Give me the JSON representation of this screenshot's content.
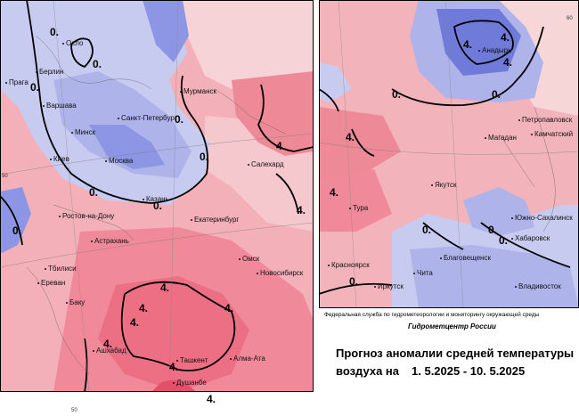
{
  "header": {
    "agency": "Федеральная служба по гидрометеорологии и мониторингу окружающей среды",
    "centre": "Гидрометцентр России"
  },
  "title": {
    "line1": "Прогноз аномалии средней температуры",
    "line2_prefix": "воздуха на",
    "period": "1. 5.2025 - 10. 5.2025"
  },
  "colors": {
    "warm_light": "#f7d6d8",
    "warm": "#f3a8b2",
    "warm_strong": "#ee7f90",
    "cold_light": "#c9cdf0",
    "cold": "#8d96e4",
    "cold_strong": "#5b67d6",
    "isoline": "#000000"
  },
  "cities_west": [
    {
      "id": "oslo",
      "label": "Осло"
    },
    {
      "id": "berlin",
      "label": "Берлин"
    },
    {
      "id": "praha",
      "label": "Прага"
    },
    {
      "id": "warsaw",
      "label": "Варшава"
    },
    {
      "id": "minsk",
      "label": "Минск"
    },
    {
      "id": "kiev",
      "label": "Киев"
    },
    {
      "id": "moscow",
      "label": "Москва"
    },
    {
      "id": "spb",
      "label": "Санкт-Петербург"
    },
    {
      "id": "murmansk",
      "label": "Мурманск"
    },
    {
      "id": "salekhard",
      "label": "Салехард"
    },
    {
      "id": "kazan",
      "label": "Казань"
    },
    {
      "id": "rostov",
      "label": "Ростов-на-Дону"
    },
    {
      "id": "yekaterinburg",
      "label": "Екатеринбург"
    },
    {
      "id": "astrakhan",
      "label": "Астрахань"
    },
    {
      "id": "omsk",
      "label": "Омск"
    },
    {
      "id": "novosibirsk",
      "label": "Новосибирск"
    },
    {
      "id": "tbilisi",
      "label": "Тбилиси"
    },
    {
      "id": "yerevan",
      "label": "Ереван"
    },
    {
      "id": "baku",
      "label": "Баку"
    },
    {
      "id": "ashgabat",
      "label": "Ашхабад"
    },
    {
      "id": "tashkent",
      "label": "Ташкент"
    },
    {
      "id": "almaty",
      "label": "Алма-Ата"
    },
    {
      "id": "dushanbe",
      "label": "Душанбе"
    }
  ],
  "cities_east": [
    {
      "id": "anadyr",
      "label": "Анадырь"
    },
    {
      "id": "petropavlovsk",
      "label": "Петропавловск"
    },
    {
      "id": "kamchatsky",
      "label": "Камчатский"
    },
    {
      "id": "magadan",
      "label": "Магадан"
    },
    {
      "id": "yakutsk",
      "label": "Якутск"
    },
    {
      "id": "tura",
      "label": "Тура"
    },
    {
      "id": "yuzhno",
      "label": "Южно-Сахалинск"
    },
    {
      "id": "khabarovsk",
      "label": "Хабаровск"
    },
    {
      "id": "blagoveshchensk",
      "label": "Благовещенск"
    },
    {
      "id": "krasnoyarsk",
      "label": "Красноярск"
    },
    {
      "id": "chita",
      "label": "Чита"
    },
    {
      "id": "irkutsk",
      "label": "Иркутск"
    },
    {
      "id": "vladivostok",
      "label": "Владивосток"
    }
  ],
  "isolines": {
    "zero": "0.",
    "four": "4."
  },
  "latitude_marks": {
    "west_50": "50",
    "bottom_50": "50",
    "east_60": "60"
  }
}
